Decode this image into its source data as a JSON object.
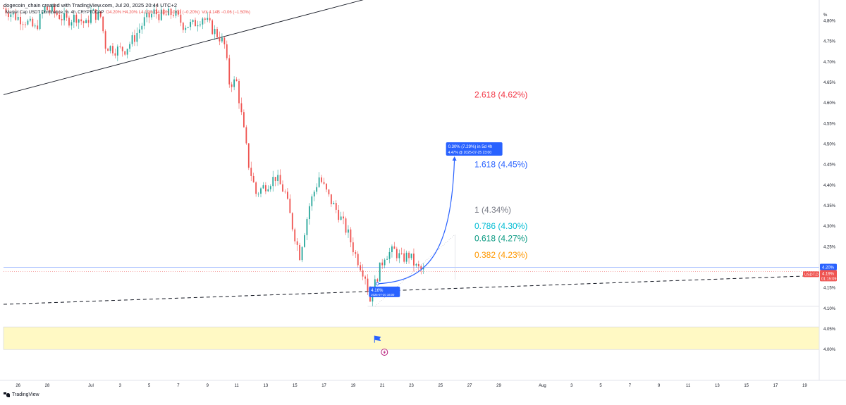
{
  "header": {
    "credit": "dogecoin_chain created with TradingView.com, Jul 20, 2025 20:44 UTC+2",
    "symbol": "Market Cap USDT Dominance, %",
    "interval": "4h",
    "exchange": "CRYPTOCAP",
    "ohlc": "O4.20% H4.20% L4.19% C4.19% −0.01 (−0.20%)",
    "volume": "Vol 4.14B −0.06 (−1.50%)"
  },
  "footer": {
    "brand": "TradingView"
  },
  "colors": {
    "up": "#26a69a",
    "down": "#ef5350",
    "fib_2618": "#f23645",
    "fib_1618": "#2962ff",
    "fib_1": "#787b86",
    "fib_0786": "#00bcd4",
    "fib_0618": "#089981",
    "fib_0382": "#ff9800",
    "zone": "#fff9c4",
    "projection": "#2962ff"
  },
  "chart_data": {
    "type": "candlestick",
    "y_unit": "%",
    "ylim": [
      3.985,
      4.835
    ],
    "y_ticks": [
      "4.80%",
      "4.75%",
      "4.70%",
      "4.65%",
      "4.60%",
      "4.55%",
      "4.50%",
      "4.45%",
      "4.40%",
      "4.35%",
      "4.30%",
      "4.25%",
      "4.20%",
      "4.15%",
      "4.10%",
      "4.05%",
      "4.00%"
    ],
    "y_tick_values": [
      4.8,
      4.75,
      4.7,
      4.65,
      4.6,
      4.55,
      4.5,
      4.45,
      4.4,
      4.35,
      4.3,
      4.25,
      4.2,
      4.15,
      4.1,
      4.05,
      4.0
    ],
    "y_axis_unit_label": "%",
    "x_range": [
      "2025-06-25",
      "2025-08-20"
    ],
    "x_ticks": [
      {
        "label": "26",
        "date": "2025-06-26"
      },
      {
        "label": "28",
        "date": "2025-06-28"
      },
      {
        "label": "Jul",
        "date": "2025-07-01"
      },
      {
        "label": "3",
        "date": "2025-07-03"
      },
      {
        "label": "5",
        "date": "2025-07-05"
      },
      {
        "label": "7",
        "date": "2025-07-07"
      },
      {
        "label": "9",
        "date": "2025-07-09"
      },
      {
        "label": "11",
        "date": "2025-07-11"
      },
      {
        "label": "13",
        "date": "2025-07-13"
      },
      {
        "label": "15",
        "date": "2025-07-15"
      },
      {
        "label": "17",
        "date": "2025-07-17"
      },
      {
        "label": "19",
        "date": "2025-07-19"
      },
      {
        "label": "21",
        "date": "2025-07-21"
      },
      {
        "label": "23",
        "date": "2025-07-23"
      },
      {
        "label": "25",
        "date": "2025-07-25"
      },
      {
        "label": "27",
        "date": "2025-07-27"
      },
      {
        "label": "29",
        "date": "2025-07-29"
      },
      {
        "label": "Aug",
        "date": "2025-08-01"
      },
      {
        "label": "3",
        "date": "2025-08-03"
      },
      {
        "label": "5",
        "date": "2025-08-05"
      },
      {
        "label": "7",
        "date": "2025-08-07"
      },
      {
        "label": "9",
        "date": "2025-08-09"
      },
      {
        "label": "11",
        "date": "2025-08-11"
      },
      {
        "label": "13",
        "date": "2025-08-13"
      },
      {
        "label": "15",
        "date": "2025-08-15"
      },
      {
        "label": "17",
        "date": "2025-08-17"
      },
      {
        "label": "19",
        "date": "2025-08-19"
      }
    ],
    "path_points": [
      [
        "2025-06-25 00:00",
        4.83
      ],
      [
        "2025-06-25 20:00",
        4.81
      ],
      [
        "2025-06-26 12:00",
        4.8
      ],
      [
        "2025-06-27 04:00",
        4.78
      ],
      [
        "2025-06-27 20:00",
        4.83
      ],
      [
        "2025-06-28 12:00",
        4.82
      ],
      [
        "2025-06-29 08:00",
        4.8
      ],
      [
        "2025-06-30 00:00",
        4.81
      ],
      [
        "2025-06-30 16:00",
        4.79
      ],
      [
        "2025-07-01 00:00",
        4.82
      ],
      [
        "2025-07-01 16:00",
        4.81
      ],
      [
        "2025-07-02 00:00",
        4.74
      ],
      [
        "2025-07-02 16:00",
        4.73
      ],
      [
        "2025-07-03 08:00",
        4.73
      ],
      [
        "2025-07-04 00:00",
        4.76
      ],
      [
        "2025-07-04 16:00",
        4.8
      ],
      [
        "2025-07-05 08:00",
        4.82
      ],
      [
        "2025-07-06 00:00",
        4.81
      ],
      [
        "2025-07-06 16:00",
        4.82
      ],
      [
        "2025-07-07 08:00",
        4.79
      ],
      [
        "2025-07-08 00:00",
        4.79
      ],
      [
        "2025-07-08 16:00",
        4.81
      ],
      [
        "2025-07-09 08:00",
        4.78
      ],
      [
        "2025-07-09 20:00",
        4.76
      ],
      [
        "2025-07-10 04:00",
        4.74
      ],
      [
        "2025-07-10 12:00",
        4.65
      ],
      [
        "2025-07-11 00:00",
        4.65
      ],
      [
        "2025-07-11 08:00",
        4.57
      ],
      [
        "2025-07-11 20:00",
        4.45
      ],
      [
        "2025-07-12 08:00",
        4.38
      ],
      [
        "2025-07-13 00:00",
        4.4
      ],
      [
        "2025-07-13 16:00",
        4.42
      ],
      [
        "2025-07-14 08:00",
        4.38
      ],
      [
        "2025-07-14 20:00",
        4.3
      ],
      [
        "2025-07-15 08:00",
        4.23
      ],
      [
        "2025-07-16 00:00",
        4.35
      ],
      [
        "2025-07-16 16:00",
        4.42
      ],
      [
        "2025-07-17 08:00",
        4.37
      ],
      [
        "2025-07-18 00:00",
        4.33
      ],
      [
        "2025-07-18 16:00",
        4.28
      ],
      [
        "2025-07-19 04:00",
        4.23
      ],
      [
        "2025-07-19 20:00",
        4.18
      ],
      [
        "2025-07-20 04:00",
        4.12
      ],
      [
        "2025-07-20 16:00",
        4.18
      ],
      [
        "2025-07-21 04:00",
        4.23
      ],
      [
        "2025-07-21 20:00",
        4.24
      ],
      [
        "2025-07-22 08:00",
        4.22
      ],
      [
        "2025-07-22 20:00",
        4.23
      ],
      [
        "2025-07-23 08:00",
        4.2
      ],
      [
        "2025-07-23 20:00",
        4.19
      ]
    ],
    "current_price": 4.19,
    "labels": {
      "current_price_text": "4.19%",
      "current_symbol": "USDT.D",
      "countdown": "01:15:09",
      "reference_price_text": "4.20%",
      "reference_price": 4.2,
      "low_label": "4.16%",
      "low_date": "2025-07-20 16:00",
      "target_label": "0.30% (7.29%) in 5d 4h",
      "target_sub": "4.47% @ 2025-07-25 23:00"
    },
    "fib_levels": [
      {
        "text": "2.618 (4.62%)",
        "value": 4.62,
        "color_key": "fib_2618"
      },
      {
        "text": "1.618 (4.45%)",
        "value": 4.45,
        "color_key": "fib_1618"
      },
      {
        "text": "1 (4.34%)",
        "value": 4.34,
        "color_key": "fib_1"
      },
      {
        "text": "0.786 (4.30%)",
        "value": 4.3,
        "color_key": "fib_0786"
      },
      {
        "text": "0.618 (4.27%)",
        "value": 4.27,
        "color_key": "fib_0618"
      },
      {
        "text": "0.382 (4.23%)",
        "value": 4.23,
        "color_key": "fib_0382"
      }
    ],
    "trendlines": {
      "upper": [
        [
          "2025-06-25",
          4.62
        ],
        [
          "2025-07-26",
          4.91
        ]
      ],
      "support_dashed": [
        [
          "2025-06-25",
          4.11
        ],
        [
          "2025-08-20",
          4.18
        ]
      ],
      "low_level": 4.105
    },
    "zone": [
      4.0,
      4.055
    ],
    "projection": {
      "start": [
        "2025-07-20 16:00",
        4.16
      ],
      "end": [
        "2025-07-25 23:00",
        4.47
      ]
    },
    "grid": false,
    "legend": "top-left"
  }
}
